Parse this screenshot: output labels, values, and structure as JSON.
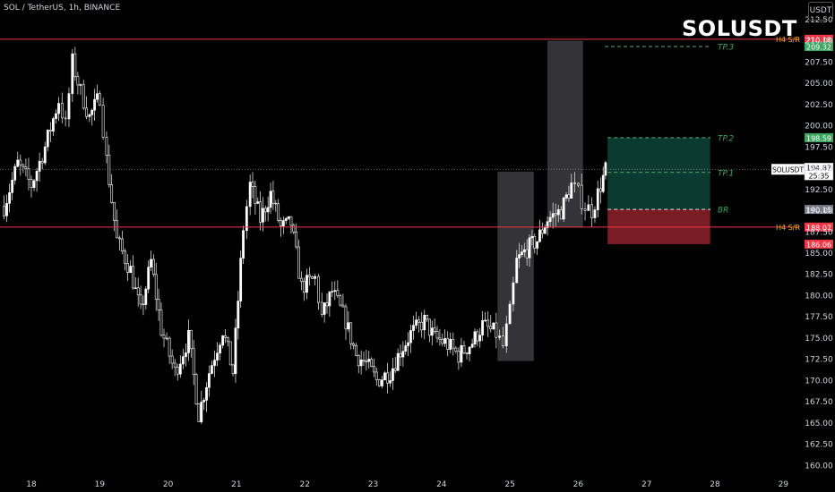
{
  "header": {
    "symbol_info": "SOL / TetherUS, 1h, BINANCE",
    "big_title": "SOLUSDT",
    "currency_button": "USDT"
  },
  "colors": {
    "background": "#000000",
    "candle_body": "#ffffff",
    "candle_wick": "#d9d9d9",
    "sr_line": "#f23645",
    "price_line": "#888888",
    "tp_label": "#3fa660",
    "profit_zone": "#0b3b30",
    "loss_zone": "#7a1c24",
    "highlight_box": "#3a3a3e",
    "axis_text": "#d1d4dc"
  },
  "chart_data": {
    "type": "candlestick",
    "timeframe": "1h",
    "x_tick_labels": [
      "18",
      "19",
      "20",
      "21",
      "22",
      "23",
      "24",
      "25",
      "26",
      "27",
      "28",
      "29"
    ],
    "y_tick_labels": [
      "160.00",
      "162.50",
      "165.00",
      "167.50",
      "170.00",
      "172.50",
      "175.00",
      "177.50",
      "180.00",
      "182.50",
      "185.00",
      "187.50",
      "190.00",
      "192.50",
      "195.00",
      "197.50",
      "200.00",
      "202.50",
      "205.00",
      "207.50",
      "210.00",
      "212.50"
    ],
    "ylim": [
      159.2,
      214.8
    ],
    "xlim": [
      17.6,
      29.2
    ],
    "sr_levels": [
      {
        "label": "H4  S/R",
        "price": 210.18,
        "price_label": "210.18"
      },
      {
        "label": "H4  S/R",
        "price": 188.07,
        "price_label": "188.07"
      }
    ],
    "targets": [
      {
        "label": "TP.3",
        "price": 209.32,
        "price_label": "209.32"
      },
      {
        "label": "TP.2",
        "price": 198.59,
        "price_label": "198.59"
      },
      {
        "label": "TP.1",
        "price": 194.5
      },
      {
        "label": "BR",
        "price": 190.15,
        "price_label": "190.15"
      }
    ],
    "stop": {
      "price": 186.06,
      "price_label": "186.06"
    },
    "position": {
      "entry": 190.15,
      "target": 198.59,
      "stop": 186.06,
      "start_day": 26.43,
      "end_day": 27.93
    },
    "current_price": {
      "symbol": "SOLUSDT",
      "price": 194.87,
      "price_label": "194.87",
      "countdown": "25:35"
    },
    "highlight_boxes": [
      {
        "x0": 24.82,
        "x1": 25.35,
        "y0": 172.3,
        "y1": 194.6
      },
      {
        "x0": 25.55,
        "x1": 26.07,
        "y0": 188.0,
        "y1": 210.0
      }
    ],
    "anchors": [
      [
        17.6,
        190.5
      ],
      [
        17.8,
        195.5
      ],
      [
        18.0,
        193.0
      ],
      [
        18.2,
        197.5
      ],
      [
        18.4,
        203.0
      ],
      [
        18.5,
        200.0
      ],
      [
        18.6,
        207.5
      ],
      [
        18.72,
        204.0
      ],
      [
        18.85,
        201.0
      ],
      [
        19.0,
        203.5
      ],
      [
        19.1,
        196.0
      ],
      [
        19.25,
        186.5
      ],
      [
        19.45,
        183.0
      ],
      [
        19.6,
        178.0
      ],
      [
        19.75,
        184.0
      ],
      [
        19.9,
        176.0
      ],
      [
        20.1,
        171.0
      ],
      [
        20.3,
        175.0
      ],
      [
        20.45,
        166.0
      ],
      [
        20.6,
        171.0
      ],
      [
        20.8,
        176.0
      ],
      [
        20.95,
        171.0
      ],
      [
        21.1,
        188.0
      ],
      [
        21.2,
        193.0
      ],
      [
        21.35,
        189.0
      ],
      [
        21.5,
        192.0
      ],
      [
        21.65,
        188.0
      ],
      [
        21.8,
        188.5
      ],
      [
        21.95,
        181.0
      ],
      [
        22.15,
        182.0
      ],
      [
        22.25,
        177.5
      ],
      [
        22.4,
        180.5
      ],
      [
        22.6,
        177.0
      ],
      [
        22.75,
        173.0
      ],
      [
        22.9,
        172.0
      ],
      [
        23.05,
        170.0
      ],
      [
        23.25,
        171.0
      ],
      [
        23.4,
        173.5
      ],
      [
        23.55,
        175.5
      ],
      [
        23.75,
        177.0
      ],
      [
        23.9,
        175.0
      ],
      [
        24.05,
        174.5
      ],
      [
        24.25,
        173.0
      ],
      [
        24.45,
        174.5
      ],
      [
        24.6,
        176.5
      ],
      [
        24.8,
        175.5
      ],
      [
        24.9,
        174.0
      ],
      [
        25.0,
        178.0
      ],
      [
        25.1,
        184.0
      ],
      [
        25.25,
        185.5
      ],
      [
        25.4,
        186.5
      ],
      [
        25.55,
        189.0
      ],
      [
        25.75,
        190.0
      ],
      [
        25.9,
        193.0
      ],
      [
        26.0,
        192.0
      ],
      [
        26.1,
        190.5
      ],
      [
        26.2,
        190.0
      ],
      [
        26.33,
        193.0
      ],
      [
        26.4,
        194.8
      ]
    ]
  }
}
